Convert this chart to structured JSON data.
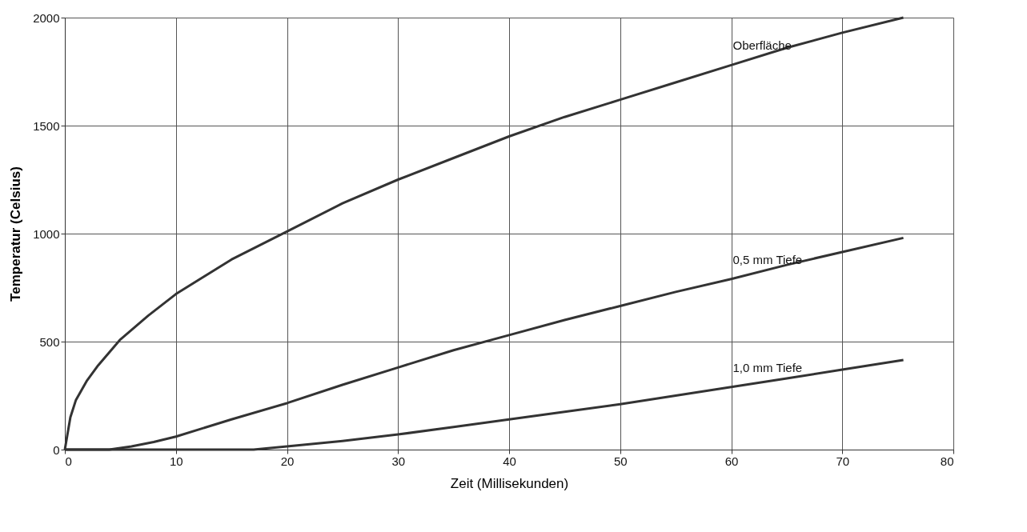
{
  "chart_data": {
    "type": "line",
    "xlabel": "Zeit (Millisekunden)",
    "ylabel": "Temperatur (Celsius)",
    "xlim": [
      0,
      80
    ],
    "xticks": [
      0,
      10,
      20,
      30,
      40,
      50,
      60,
      70,
      80
    ],
    "ylim": [
      0,
      2000
    ],
    "yticks": [
      0,
      500,
      1000,
      1500,
      2000
    ],
    "grid": true,
    "marker": "none",
    "line_style": "solid",
    "series": [
      {
        "name": "Oberfläche",
        "color": "#333333",
        "x": [
          0,
          0.5,
          1,
          2,
          3,
          5,
          7.5,
          10,
          15,
          20,
          25,
          30,
          35,
          40,
          45,
          50,
          55,
          60,
          65,
          70,
          75.5
        ],
        "values": [
          0,
          150,
          230,
          320,
          390,
          510,
          620,
          720,
          880,
          1010,
          1140,
          1250,
          1350,
          1450,
          1540,
          1620,
          1700,
          1780,
          1860,
          1930,
          2000
        ]
      },
      {
        "name": "0,5 mm Tiefe",
        "color": "#333333",
        "x": [
          0,
          4,
          6,
          8,
          10,
          15,
          20,
          25,
          30,
          35,
          40,
          45,
          50,
          55,
          60,
          65,
          70,
          75.5
        ],
        "values": [
          0,
          0,
          15,
          35,
          60,
          140,
          215,
          300,
          380,
          460,
          530,
          600,
          665,
          730,
          790,
          855,
          915,
          980
        ]
      },
      {
        "name": "1,0 mm Tiefe",
        "color": "#333333",
        "x": [
          0,
          17,
          20,
          25,
          30,
          35,
          40,
          45,
          50,
          55,
          60,
          65,
          70,
          75.5
        ],
        "values": [
          0,
          0,
          15,
          40,
          70,
          105,
          140,
          175,
          210,
          250,
          290,
          330,
          370,
          415
        ]
      }
    ]
  }
}
